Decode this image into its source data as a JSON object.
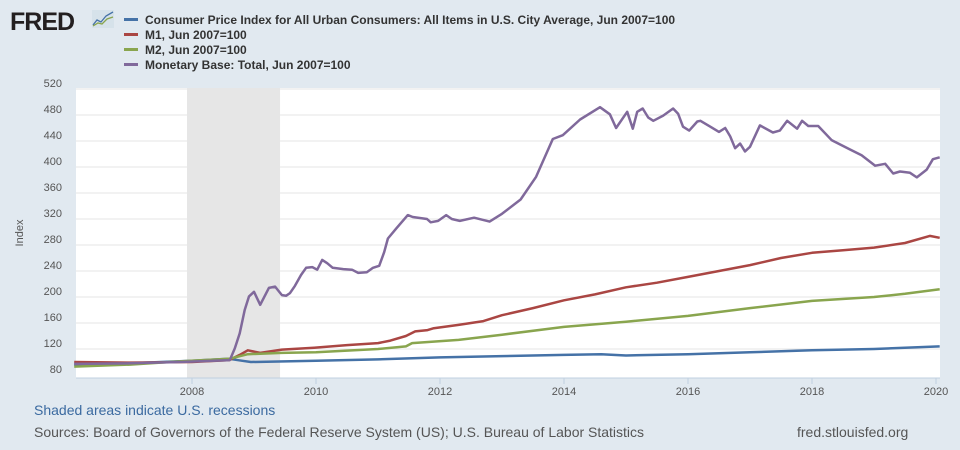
{
  "logo": {
    "text": "FRED"
  },
  "footer": {
    "recession_note": "Shaded areas indicate U.S. recessions",
    "sources": "Sources: Board of Governors of the Federal Reserve System (US); U.S. Bureau of Labor Statistics",
    "site": "fred.stlouisfed.org"
  },
  "chart_data": {
    "type": "line",
    "ylabel": "Index",
    "xlabel": "",
    "ylim": [
      80,
      520
    ],
    "xlim": [
      2006.1,
      2020.06
    ],
    "yticks": [
      80,
      120,
      160,
      200,
      240,
      280,
      320,
      360,
      400,
      440,
      480,
      520
    ],
    "xticks": [
      2008,
      2010,
      2012,
      2014,
      2016,
      2018,
      2020
    ],
    "grid": true,
    "legend_position": "top-left",
    "recessions": [
      [
        2007.92,
        2009.42
      ]
    ],
    "series": [
      {
        "name": "Consumer Price Index for All Urban Consumers: All Items in U.S. City Average, Jun 2007=100",
        "color": "#4572a7",
        "points": [
          [
            2006.1,
            96
          ],
          [
            2007.0,
            98
          ],
          [
            2007.5,
            100
          ],
          [
            2008.0,
            102
          ],
          [
            2008.6,
            105
          ],
          [
            2008.8,
            102
          ],
          [
            2008.95,
            100
          ],
          [
            2009.5,
            101
          ],
          [
            2010.0,
            102
          ],
          [
            2011.0,
            104
          ],
          [
            2012.0,
            107
          ],
          [
            2013.0,
            109
          ],
          [
            2014.0,
            111
          ],
          [
            2014.6,
            112
          ],
          [
            2015.0,
            110
          ],
          [
            2016.0,
            112
          ],
          [
            2017.0,
            115
          ],
          [
            2018.0,
            118
          ],
          [
            2019.0,
            120
          ],
          [
            2020.06,
            124
          ]
        ]
      },
      {
        "name": "M1, Jun 2007=100",
        "color": "#aa4643",
        "points": [
          [
            2006.1,
            100
          ],
          [
            2007.0,
            99
          ],
          [
            2008.0,
            100
          ],
          [
            2008.6,
            103
          ],
          [
            2008.77,
            111
          ],
          [
            2008.9,
            118
          ],
          [
            2009.1,
            114
          ],
          [
            2009.45,
            119
          ],
          [
            2009.97,
            122
          ],
          [
            2010.5,
            126
          ],
          [
            2011.0,
            129
          ],
          [
            2011.2,
            133
          ],
          [
            2011.45,
            140
          ],
          [
            2011.6,
            147
          ],
          [
            2011.8,
            149
          ],
          [
            2011.9,
            152
          ],
          [
            2012.3,
            157
          ],
          [
            2012.7,
            163
          ],
          [
            2013.0,
            172
          ],
          [
            2013.5,
            183
          ],
          [
            2014.0,
            195
          ],
          [
            2014.5,
            204
          ],
          [
            2015.0,
            215
          ],
          [
            2015.5,
            222
          ],
          [
            2016.0,
            231
          ],
          [
            2016.5,
            240
          ],
          [
            2017.0,
            249
          ],
          [
            2017.5,
            260
          ],
          [
            2018.0,
            268
          ],
          [
            2018.5,
            272
          ],
          [
            2019.0,
            276
          ],
          [
            2019.5,
            283
          ],
          [
            2019.9,
            294
          ],
          [
            2020.06,
            291
          ]
        ]
      },
      {
        "name": "M2, Jun 2007=100",
        "color": "#89a54e",
        "points": [
          [
            2006.1,
            93
          ],
          [
            2007.0,
            96
          ],
          [
            2007.8,
            101
          ],
          [
            2008.6,
            105
          ],
          [
            2008.9,
            112
          ],
          [
            2009.45,
            114
          ],
          [
            2010.0,
            115
          ],
          [
            2011.0,
            120
          ],
          [
            2011.45,
            124
          ],
          [
            2011.55,
            129
          ],
          [
            2012.3,
            134
          ],
          [
            2013.0,
            142
          ],
          [
            2014.0,
            154
          ],
          [
            2015.0,
            162
          ],
          [
            2016.0,
            171
          ],
          [
            2017.0,
            183
          ],
          [
            2018.0,
            194
          ],
          [
            2019.0,
            200
          ],
          [
            2019.5,
            205
          ],
          [
            2020.06,
            212
          ]
        ]
      },
      {
        "name": "Monetary Base: Total, Jun 2007=100",
        "color": "#80699b",
        "points": [
          [
            2006.1,
            97
          ],
          [
            2007.0,
            98
          ],
          [
            2007.81,
            100
          ],
          [
            2008.61,
            103
          ],
          [
            2008.69,
            121
          ],
          [
            2008.77,
            144
          ],
          [
            2008.85,
            180
          ],
          [
            2008.92,
            201
          ],
          [
            2009.0,
            208
          ],
          [
            2009.1,
            188
          ],
          [
            2009.24,
            214
          ],
          [
            2009.34,
            216
          ],
          [
            2009.45,
            203
          ],
          [
            2009.52,
            202
          ],
          [
            2009.58,
            206
          ],
          [
            2009.66,
            217
          ],
          [
            2009.76,
            234
          ],
          [
            2009.84,
            245
          ],
          [
            2009.94,
            246
          ],
          [
            2010.02,
            242
          ],
          [
            2010.1,
            257
          ],
          [
            2010.18,
            252
          ],
          [
            2010.27,
            245
          ],
          [
            2010.44,
            243
          ],
          [
            2010.58,
            242
          ],
          [
            2010.68,
            237
          ],
          [
            2010.82,
            238
          ],
          [
            2010.92,
            245
          ],
          [
            2011.02,
            248
          ],
          [
            2011.1,
            269
          ],
          [
            2011.16,
            290
          ],
          [
            2011.3,
            306
          ],
          [
            2011.48,
            326
          ],
          [
            2011.56,
            323
          ],
          [
            2011.79,
            320
          ],
          [
            2011.85,
            315
          ],
          [
            2011.97,
            317
          ],
          [
            2012.1,
            326
          ],
          [
            2012.19,
            320
          ],
          [
            2012.32,
            317
          ],
          [
            2012.55,
            322
          ],
          [
            2012.8,
            316
          ],
          [
            2013.0,
            328
          ],
          [
            2013.3,
            350
          ],
          [
            2013.55,
            385
          ],
          [
            2013.82,
            443
          ],
          [
            2013.98,
            449
          ],
          [
            2014.26,
            473
          ],
          [
            2014.58,
            492
          ],
          [
            2014.74,
            481
          ],
          [
            2014.84,
            460
          ],
          [
            2015.02,
            485
          ],
          [
            2015.11,
            459
          ],
          [
            2015.18,
            485
          ],
          [
            2015.27,
            490
          ],
          [
            2015.36,
            476
          ],
          [
            2015.44,
            471
          ],
          [
            2015.6,
            479
          ],
          [
            2015.76,
            490
          ],
          [
            2015.84,
            482
          ],
          [
            2015.92,
            462
          ],
          [
            2016.02,
            456
          ],
          [
            2016.15,
            470
          ],
          [
            2016.2,
            471
          ],
          [
            2016.36,
            462
          ],
          [
            2016.5,
            454
          ],
          [
            2016.6,
            460
          ],
          [
            2016.68,
            447
          ],
          [
            2016.76,
            429
          ],
          [
            2016.84,
            436
          ],
          [
            2016.92,
            424
          ],
          [
            2017.0,
            431
          ],
          [
            2017.16,
            464
          ],
          [
            2017.37,
            453
          ],
          [
            2017.48,
            456
          ],
          [
            2017.6,
            471
          ],
          [
            2017.76,
            459
          ],
          [
            2017.84,
            471
          ],
          [
            2017.94,
            463
          ],
          [
            2018.1,
            463
          ],
          [
            2018.32,
            441
          ],
          [
            2018.61,
            427
          ],
          [
            2018.8,
            418
          ],
          [
            2019.02,
            402
          ],
          [
            2019.18,
            405
          ],
          [
            2019.31,
            390
          ],
          [
            2019.42,
            393
          ],
          [
            2019.58,
            391
          ],
          [
            2019.69,
            384
          ],
          [
            2019.85,
            396
          ],
          [
            2019.95,
            412
          ],
          [
            2020.06,
            415
          ]
        ]
      }
    ]
  }
}
